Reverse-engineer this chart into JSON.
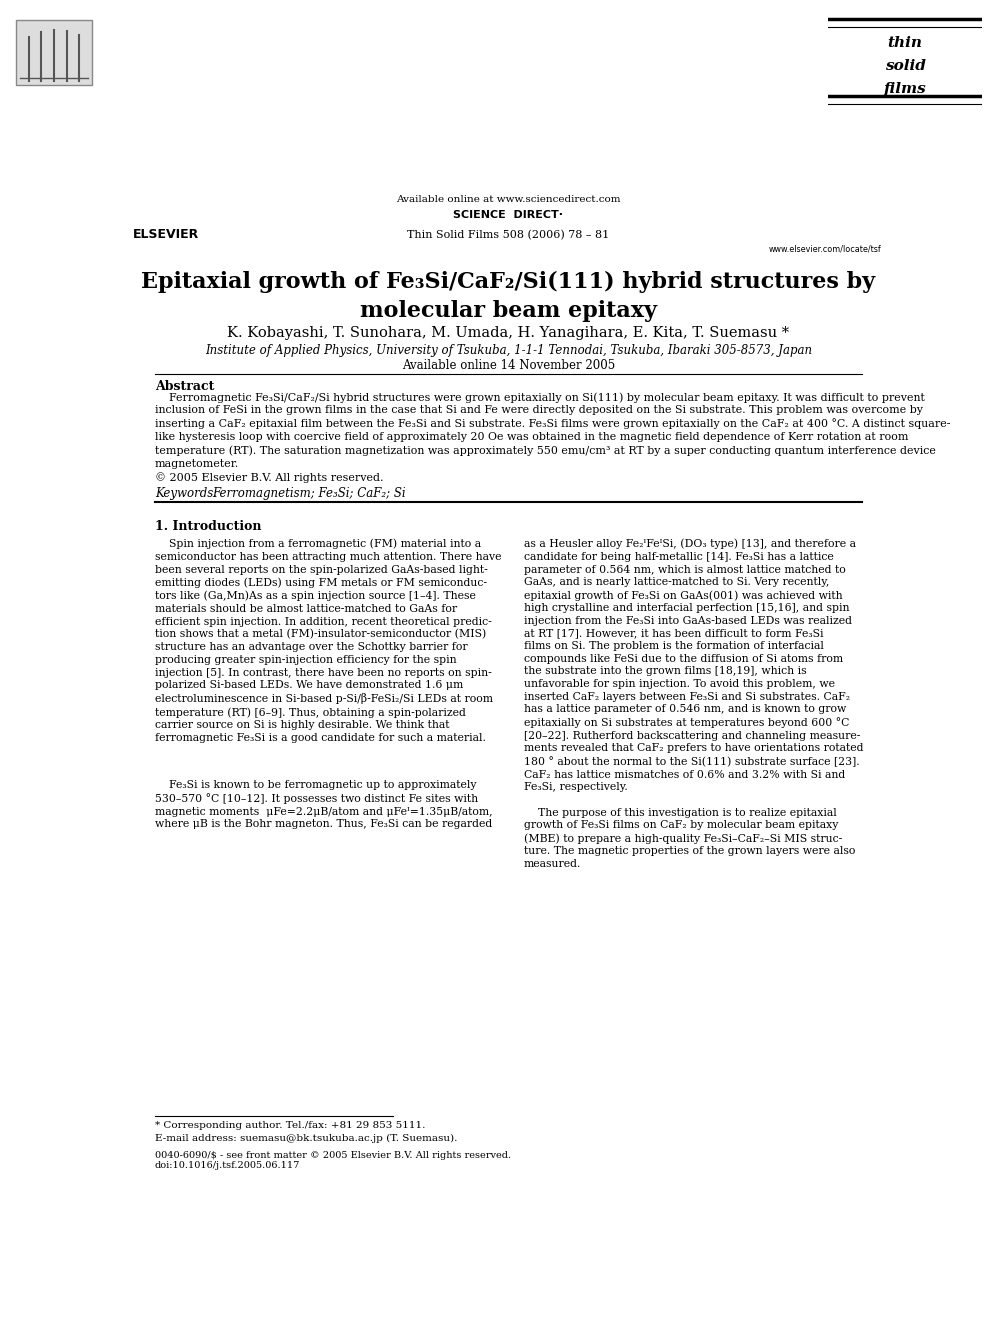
{
  "page_width": 9.92,
  "page_height": 13.23,
  "bg_color": "#ffffff",
  "header": {
    "available_online": "Available online at www.sciencedirect.com",
    "journal_ref": "Thin Solid Films 508 (2006) 78 – 81",
    "elsevier_text": "ELSEVIER",
    "sciencedirect_text": "SCIENCE  DIRECT·",
    "tsf_line1": "thin",
    "tsf_line2": "solid",
    "tsf_line3": "films",
    "website": "www.elsevier.com/locate/tsf"
  },
  "title": "Epitaxial growth of Fe₃Si/CaF₂/Si(111) hybrid structures by\nmolecular beam epitaxy",
  "authors": "K. Kobayashi, T. Sunohara, M. Umada, H. Yanagihara, E. Kita, T. Suemasu *",
  "affiliation": "Institute of Applied Physics, University of Tsukuba, 1-1-1 Tennodai, Tsukuba, Ibaraki 305-8573, Japan",
  "available_online_date": "Available online 14 November 2005",
  "abstract_title": "Abstract",
  "abstract_text": "Ferromagnetic Fe₃Si/CaF₂/Si hybrid structures were grown epitaxially on Si(111) by molecular beam epitaxy. It was difficult to prevent inclusion of FeSi in the grown films in the case that Si and Fe were directly deposited on the Si substrate. This problem was overcome by inserting a CaF₂ epitaxial film between the Fe₃Si and Si substrate. Fe₃Si films were grown epitaxially on the CaF₂ at 400 °C. A distinct square-like hysteresis loop with coercive field of approximately 20 Oe was obtained in the magnetic field dependence of Kerr rotation at room temperature (RT). The saturation magnetization was approximately 550 emu/cm³ at RT by a super conducting quantum interference device magnetometer.",
  "copyright": "© 2005 Elsevier B.V. All rights reserved.",
  "keywords_label": "Keywords:",
  "keywords": "Ferromagnetism; Fe₃Si; CaF₂; Si",
  "section1_title": "1. Introduction",
  "footnote_star": "* Corresponding author. Tel./fax: +81 29 853 5111.",
  "footnote_email": "E-mail address: suemasu@bk.tsukuba.ac.jp (T. Suemasu).",
  "bottom_line1": "0040-6090/$ - see front matter © 2005 Elsevier B.V. All rights reserved.",
  "bottom_line2": "doi:10.1016/j.tsf.2005.06.117"
}
